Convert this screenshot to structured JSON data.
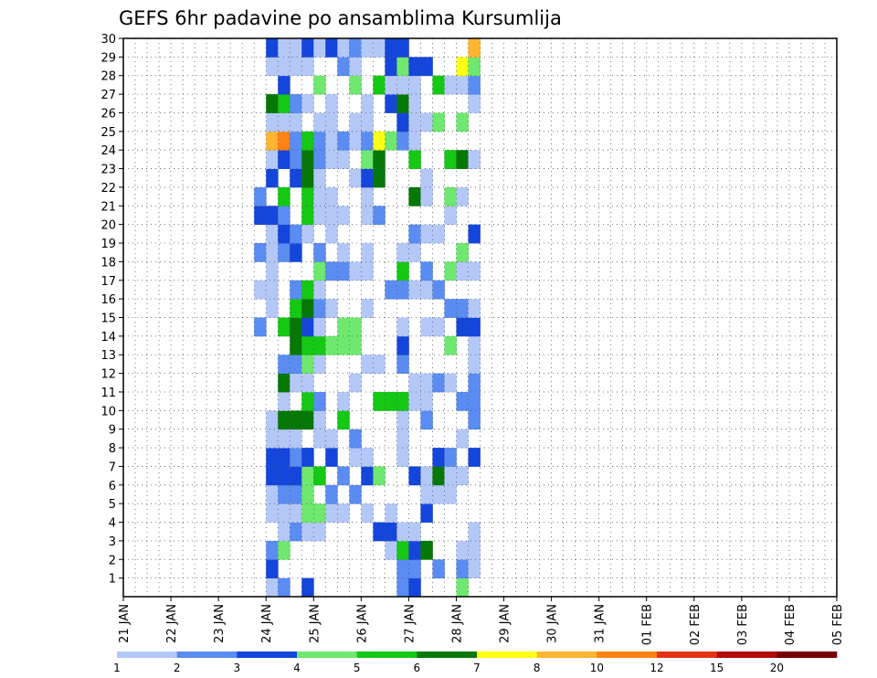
{
  "chart_data": {
    "type": "heatmap",
    "title": "GEFS 6hr padavine po ansamblima Kursumlija",
    "xlabel": "",
    "ylabel": "",
    "x_tick_labels": [
      "21 JAN",
      "22 JAN",
      "23 JAN",
      "24 JAN",
      "25 JAN",
      "26 JAN",
      "27 JAN",
      "28 JAN",
      "29 JAN",
      "30 JAN",
      "31 JAN",
      "01 FEB",
      "02 FEB",
      "03 FEB",
      "04 FEB",
      "05 FEB"
    ],
    "y_tick_labels": [
      "1",
      "2",
      "3",
      "4",
      "5",
      "6",
      "7",
      "8",
      "9",
      "10",
      "11",
      "12",
      "13",
      "14",
      "15",
      "16",
      "17",
      "18",
      "19",
      "20",
      "21",
      "22",
      "23",
      "24",
      "25",
      "26",
      "27",
      "28",
      "29",
      "30"
    ],
    "ylim": [
      0,
      30
    ],
    "grid": true,
    "time_step_hours": 6,
    "members": 30,
    "colorbar": {
      "levels": [
        "1",
        "2",
        "3",
        "4",
        "5",
        "6",
        "7",
        "8",
        "10",
        "12",
        "15",
        "20"
      ],
      "colors": [
        "#b4c8f8",
        "#5a8cf2",
        "#1446dc",
        "#6ee86e",
        "#14c814",
        "#067806",
        "#ffff14",
        "#ffb432",
        "#ff8214",
        "#e63214",
        "#b40a0a",
        "#780000"
      ]
    },
    "cells": [
      [
        1,
        13,
        1
      ],
      [
        1,
        14,
        2
      ],
      [
        1,
        16,
        3
      ],
      [
        1,
        24,
        2
      ],
      [
        1,
        25,
        3
      ],
      [
        1,
        29,
        4
      ],
      [
        2,
        13,
        3
      ],
      [
        2,
        24,
        2
      ],
      [
        2,
        25,
        2
      ],
      [
        2,
        27,
        2
      ],
      [
        2,
        29,
        2
      ],
      [
        2,
        30,
        1
      ],
      [
        3,
        13,
        2
      ],
      [
        3,
        14,
        4
      ],
      [
        3,
        23,
        1
      ],
      [
        3,
        24,
        5
      ],
      [
        3,
        25,
        3
      ],
      [
        3,
        26,
        6
      ],
      [
        3,
        29,
        1
      ],
      [
        3,
        30,
        1
      ],
      [
        4,
        14,
        1
      ],
      [
        4,
        15,
        2
      ],
      [
        4,
        16,
        1
      ],
      [
        4,
        17,
        1
      ],
      [
        4,
        22,
        3
      ],
      [
        4,
        23,
        3
      ],
      [
        4,
        24,
        1
      ],
      [
        4,
        25,
        1
      ],
      [
        4,
        30,
        1
      ],
      [
        5,
        13,
        1
      ],
      [
        5,
        14,
        1
      ],
      [
        5,
        15,
        1
      ],
      [
        5,
        16,
        4
      ],
      [
        5,
        17,
        4
      ],
      [
        5,
        18,
        1
      ],
      [
        5,
        19,
        1
      ],
      [
        5,
        21,
        1
      ],
      [
        5,
        23,
        1
      ],
      [
        5,
        26,
        3
      ],
      [
        6,
        13,
        1
      ],
      [
        6,
        14,
        2
      ],
      [
        6,
        15,
        2
      ],
      [
        6,
        16,
        4
      ],
      [
        6,
        18,
        2
      ],
      [
        6,
        20,
        2
      ],
      [
        6,
        26,
        1
      ],
      [
        6,
        27,
        1
      ],
      [
        6,
        28,
        1
      ],
      [
        7,
        13,
        3
      ],
      [
        7,
        14,
        3
      ],
      [
        7,
        15,
        3
      ],
      [
        7,
        16,
        4
      ],
      [
        7,
        17,
        5
      ],
      [
        7,
        19,
        2
      ],
      [
        7,
        21,
        3
      ],
      [
        7,
        22,
        4
      ],
      [
        7,
        25,
        3
      ],
      [
        7,
        26,
        1
      ],
      [
        7,
        27,
        6
      ],
      [
        7,
        28,
        1
      ],
      [
        7,
        29,
        1
      ],
      [
        8,
        13,
        3
      ],
      [
        8,
        14,
        3
      ],
      [
        8,
        15,
        2
      ],
      [
        8,
        16,
        3
      ],
      [
        8,
        18,
        3
      ],
      [
        8,
        20,
        1
      ],
      [
        8,
        21,
        1
      ],
      [
        8,
        24,
        1
      ],
      [
        8,
        27,
        3
      ],
      [
        8,
        28,
        2
      ],
      [
        8,
        30,
        3
      ],
      [
        9,
        13,
        1
      ],
      [
        9,
        14,
        1
      ],
      [
        9,
        15,
        1
      ],
      [
        9,
        17,
        1
      ],
      [
        9,
        18,
        1
      ],
      [
        9,
        20,
        2
      ],
      [
        9,
        24,
        1
      ],
      [
        9,
        29,
        1
      ],
      [
        10,
        13,
        1
      ],
      [
        10,
        14,
        6
      ],
      [
        10,
        15,
        6
      ],
      [
        10,
        16,
        6
      ],
      [
        10,
        17,
        1
      ],
      [
        10,
        19,
        5
      ],
      [
        10,
        24,
        1
      ],
      [
        10,
        26,
        2
      ],
      [
        10,
        30,
        2
      ],
      [
        11,
        14,
        1
      ],
      [
        11,
        16,
        5
      ],
      [
        11,
        17,
        2
      ],
      [
        11,
        19,
        1
      ],
      [
        11,
        22,
        5
      ],
      [
        11,
        23,
        5
      ],
      [
        11,
        24,
        5
      ],
      [
        11,
        25,
        1
      ],
      [
        11,
        26,
        1
      ],
      [
        11,
        29,
        2
      ],
      [
        11,
        30,
        2
      ],
      [
        12,
        14,
        6
      ],
      [
        12,
        15,
        1
      ],
      [
        12,
        16,
        1
      ],
      [
        12,
        20,
        1
      ],
      [
        12,
        25,
        1
      ],
      [
        12,
        26,
        1
      ],
      [
        12,
        27,
        2
      ],
      [
        12,
        28,
        1
      ],
      [
        12,
        30,
        2
      ],
      [
        13,
        14,
        2
      ],
      [
        13,
        15,
        2
      ],
      [
        13,
        16,
        4
      ],
      [
        13,
        17,
        1
      ],
      [
        13,
        21,
        1
      ],
      [
        13,
        22,
        1
      ],
      [
        13,
        24,
        2
      ],
      [
        13,
        30,
        1
      ],
      [
        14,
        15,
        6
      ],
      [
        14,
        16,
        5
      ],
      [
        14,
        17,
        5
      ],
      [
        14,
        18,
        4
      ],
      [
        14,
        19,
        4
      ],
      [
        14,
        20,
        4
      ],
      [
        14,
        24,
        3
      ],
      [
        14,
        28,
        4
      ],
      [
        14,
        30,
        1
      ],
      [
        15,
        12,
        2
      ],
      [
        15,
        14,
        5
      ],
      [
        15,
        15,
        6
      ],
      [
        15,
        16,
        3
      ],
      [
        15,
        17,
        1
      ],
      [
        15,
        19,
        4
      ],
      [
        15,
        20,
        4
      ],
      [
        15,
        24,
        1
      ],
      [
        15,
        26,
        1
      ],
      [
        15,
        27,
        1
      ],
      [
        15,
        29,
        3
      ],
      [
        15,
        30,
        3
      ],
      [
        16,
        13,
        1
      ],
      [
        16,
        15,
        5
      ],
      [
        16,
        16,
        6
      ],
      [
        16,
        17,
        2
      ],
      [
        16,
        18,
        1
      ],
      [
        16,
        21,
        1
      ],
      [
        16,
        28,
        2
      ],
      [
        16,
        29,
        2
      ],
      [
        16,
        30,
        1
      ],
      [
        17,
        12,
        1
      ],
      [
        17,
        13,
        1
      ],
      [
        17,
        15,
        2
      ],
      [
        17,
        16,
        5
      ],
      [
        17,
        17,
        1
      ],
      [
        17,
        23,
        2
      ],
      [
        17,
        24,
        2
      ],
      [
        17,
        25,
        1
      ],
      [
        17,
        26,
        1
      ],
      [
        17,
        27,
        2
      ],
      [
        18,
        13,
        1
      ],
      [
        18,
        17,
        4
      ],
      [
        18,
        18,
        2
      ],
      [
        18,
        19,
        2
      ],
      [
        18,
        20,
        1
      ],
      [
        18,
        21,
        1
      ],
      [
        18,
        24,
        5
      ],
      [
        18,
        26,
        2
      ],
      [
        18,
        28,
        4
      ],
      [
        18,
        29,
        1
      ],
      [
        18,
        30,
        1
      ],
      [
        19,
        12,
        2
      ],
      [
        19,
        13,
        1
      ],
      [
        19,
        14,
        2
      ],
      [
        19,
        15,
        3
      ],
      [
        19,
        17,
        2
      ],
      [
        19,
        19,
        1
      ],
      [
        19,
        21,
        1
      ],
      [
        19,
        24,
        1
      ],
      [
        19,
        25,
        1
      ],
      [
        19,
        29,
        4
      ],
      [
        20,
        13,
        1
      ],
      [
        20,
        14,
        3
      ],
      [
        20,
        15,
        2
      ],
      [
        20,
        16,
        1
      ],
      [
        20,
        18,
        1
      ],
      [
        20,
        25,
        2
      ],
      [
        20,
        26,
        1
      ],
      [
        20,
        27,
        1
      ],
      [
        20,
        30,
        3
      ],
      [
        21,
        12,
        3
      ],
      [
        21,
        13,
        3
      ],
      [
        21,
        14,
        2
      ],
      [
        21,
        16,
        5
      ],
      [
        21,
        17,
        1
      ],
      [
        21,
        18,
        1
      ],
      [
        21,
        19,
        1
      ],
      [
        21,
        21,
        1
      ],
      [
        21,
        22,
        2
      ],
      [
        21,
        28,
        1
      ],
      [
        22,
        12,
        2
      ],
      [
        22,
        14,
        5
      ],
      [
        22,
        16,
        5
      ],
      [
        22,
        17,
        1
      ],
      [
        22,
        18,
        1
      ],
      [
        22,
        21,
        1
      ],
      [
        22,
        25,
        6
      ],
      [
        22,
        26,
        1
      ],
      [
        22,
        28,
        4
      ],
      [
        22,
        29,
        1
      ],
      [
        23,
        13,
        3
      ],
      [
        23,
        15,
        3
      ],
      [
        23,
        16,
        6
      ],
      [
        23,
        17,
        1
      ],
      [
        23,
        20,
        1
      ],
      [
        23,
        21,
        3
      ],
      [
        23,
        22,
        6
      ],
      [
        23,
        26,
        1
      ],
      [
        24,
        13,
        1
      ],
      [
        24,
        14,
        3
      ],
      [
        24,
        15,
        2
      ],
      [
        24,
        16,
        6
      ],
      [
        24,
        17,
        2
      ],
      [
        24,
        18,
        1
      ],
      [
        24,
        19,
        1
      ],
      [
        24,
        21,
        4
      ],
      [
        24,
        22,
        6
      ],
      [
        24,
        25,
        5
      ],
      [
        24,
        28,
        5
      ],
      [
        24,
        29,
        6
      ],
      [
        24,
        30,
        1
      ],
      [
        25,
        13,
        8
      ],
      [
        25,
        14,
        9
      ],
      [
        25,
        15,
        2
      ],
      [
        25,
        16,
        5
      ],
      [
        25,
        17,
        2
      ],
      [
        25,
        18,
        1
      ],
      [
        25,
        19,
        2
      ],
      [
        25,
        20,
        1
      ],
      [
        25,
        21,
        2
      ],
      [
        25,
        22,
        7
      ],
      [
        25,
        23,
        4
      ],
      [
        25,
        24,
        2
      ],
      [
        25,
        25,
        1
      ],
      [
        26,
        13,
        1
      ],
      [
        26,
        14,
        1
      ],
      [
        26,
        15,
        1
      ],
      [
        26,
        17,
        1
      ],
      [
        26,
        18,
        1
      ],
      [
        26,
        20,
        1
      ],
      [
        26,
        21,
        1
      ],
      [
        26,
        24,
        3
      ],
      [
        26,
        25,
        1
      ],
      [
        26,
        26,
        1
      ],
      [
        26,
        27,
        4
      ],
      [
        26,
        29,
        4
      ],
      [
        27,
        13,
        6
      ],
      [
        27,
        14,
        5
      ],
      [
        27,
        15,
        2
      ],
      [
        27,
        16,
        1
      ],
      [
        27,
        18,
        1
      ],
      [
        27,
        21,
        1
      ],
      [
        27,
        23,
        3
      ],
      [
        27,
        24,
        6
      ],
      [
        27,
        25,
        1
      ],
      [
        27,
        30,
        1
      ],
      [
        28,
        14,
        3
      ],
      [
        28,
        17,
        4
      ],
      [
        28,
        20,
        4
      ],
      [
        28,
        22,
        5
      ],
      [
        28,
        23,
        1
      ],
      [
        28,
        24,
        1
      ],
      [
        28,
        25,
        1
      ],
      [
        28,
        27,
        5
      ],
      [
        28,
        28,
        1
      ],
      [
        28,
        29,
        1
      ],
      [
        28,
        30,
        2
      ],
      [
        29,
        13,
        1
      ],
      [
        29,
        14,
        1
      ],
      [
        29,
        15,
        1
      ],
      [
        29,
        16,
        1
      ],
      [
        29,
        19,
        2
      ],
      [
        29,
        20,
        1
      ],
      [
        29,
        23,
        3
      ],
      [
        29,
        24,
        4
      ],
      [
        29,
        25,
        3
      ],
      [
        29,
        26,
        3
      ],
      [
        29,
        29,
        7
      ],
      [
        29,
        30,
        4
      ],
      [
        30,
        13,
        3
      ],
      [
        30,
        14,
        1
      ],
      [
        30,
        15,
        1
      ],
      [
        30,
        16,
        3
      ],
      [
        30,
        17,
        1
      ],
      [
        30,
        18,
        3
      ],
      [
        30,
        19,
        1
      ],
      [
        30,
        20,
        2
      ],
      [
        30,
        21,
        1
      ],
      [
        30,
        22,
        1
      ],
      [
        30,
        23,
        3
      ],
      [
        30,
        24,
        3
      ],
      [
        30,
        30,
        8
      ]
    ]
  }
}
